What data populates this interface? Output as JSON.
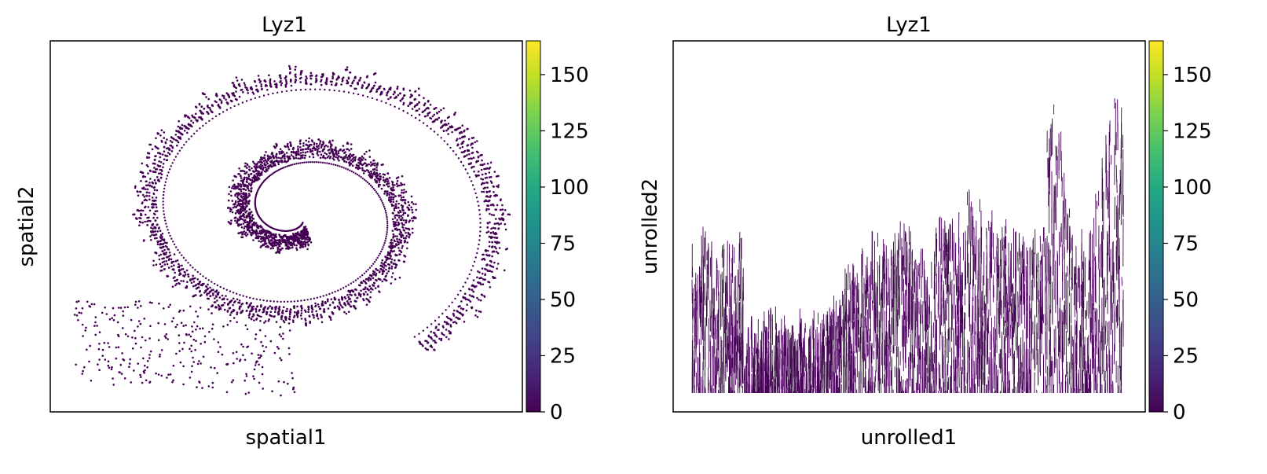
{
  "chart_data": [
    {
      "type": "scatter",
      "title": "Lyz1",
      "xlabel": "spatial1",
      "ylabel": "spatial2",
      "shape": "spiral tissue section (swiss roll)",
      "color_by": "Lyz1 expression",
      "point_color": "#440154",
      "observed_values": [
        0
      ],
      "colorbar": {
        "colormap": "viridis",
        "range": [
          0,
          165
        ],
        "ticks": [
          "0",
          "25",
          "50",
          "75",
          "100",
          "125",
          "150"
        ]
      },
      "axis_ticks_shown": false
    },
    {
      "type": "scatter",
      "title": "Lyz1",
      "xlabel": "unrolled1",
      "ylabel": "unrolled2",
      "shape": "unrolled tissue strip, dense vertical streaks",
      "color_by": "Lyz1 expression",
      "point_color": "#440154",
      "observed_values": [
        0
      ],
      "colorbar": {
        "colormap": "viridis",
        "range": [
          0,
          165
        ],
        "ticks": [
          "0",
          "25",
          "50",
          "75",
          "100",
          "125",
          "150"
        ]
      },
      "axis_ticks_shown": false
    }
  ]
}
